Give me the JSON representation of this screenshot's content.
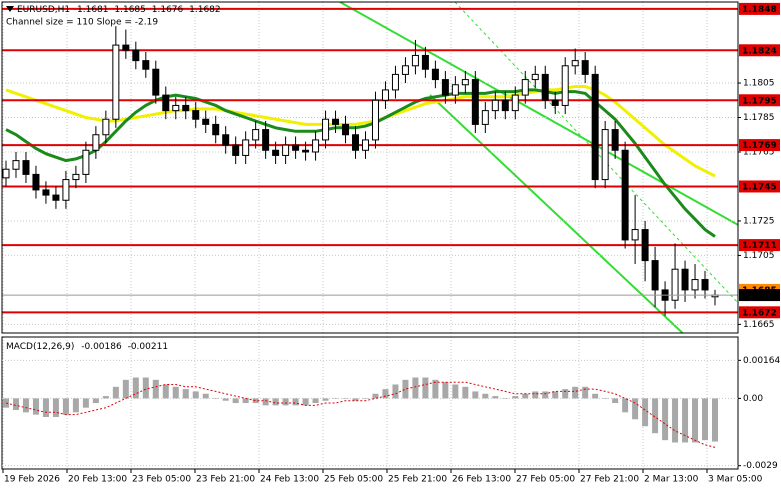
{
  "chart_data": {
    "type": "candlestick",
    "title": "EURUSD,H1",
    "header_values": [
      1.1681,
      1.1685,
      1.1676,
      1.1682
    ],
    "subtitle": "Channel size = 110 Slope = -2.19",
    "x_labels": [
      "19 Feb 2026",
      "20 Feb 13:00",
      "23 Feb 05:00",
      "23 Feb 21:00",
      "24 Feb 13:00",
      "25 Feb 05:00",
      "25 Feb 21:00",
      "26 Feb 13:00",
      "27 Feb 05:00",
      "27 Feb 21:00",
      "2 Mar 13:00",
      "3 Mar 05:00"
    ],
    "ylim": [
      1.166,
      1.1852
    ],
    "yticks": [
      1.1805,
      1.1785,
      1.1765,
      1.1725,
      1.1705,
      1.1665
    ],
    "grid": true,
    "levels": [
      1.1848,
      1.1824,
      1.1795,
      1.1769,
      1.1745,
      1.1711,
      1.1672
    ],
    "level_color": "#e00000",
    "ask": 1.1685,
    "ask_color": "#ff8c00",
    "price": 1.1682,
    "up_color": "#ffffff",
    "down_color": "#000000",
    "open": [
      1.175,
      1.1755,
      1.176,
      1.1752,
      1.1743,
      1.174,
      1.1737,
      1.1749,
      1.1752,
      1.1766,
      1.1775,
      1.1784,
      1.1827,
      1.1824,
      1.1818,
      1.1813,
      1.1798,
      1.1789,
      1.1792,
      1.1789,
      1.1784,
      1.1781,
      1.1775,
      1.1769,
      1.1763,
      1.1772,
      1.1778,
      1.1766,
      1.1763,
      1.1769,
      1.1766,
      1.1765,
      1.1772,
      1.1784,
      1.1781,
      1.1775,
      1.1766,
      1.1772,
      1.1795,
      1.1801,
      1.181,
      1.1815,
      1.1821,
      1.1813,
      1.1807,
      1.1798,
      1.1804,
      1.1807,
      1.1781,
      1.1789,
      1.1795,
      1.1789,
      1.1798,
      1.1807,
      1.181,
      1.1795,
      1.1792,
      1.1815,
      1.1818,
      1.181,
      1.1749,
      1.1778,
      1.1766,
      1.1714,
      1.172,
      1.1702,
      1.1685,
      1.1679,
      1.1697,
      1.1685,
      1.1691,
      1.1681
    ],
    "high": [
      1.176,
      1.1765,
      1.1765,
      1.1757,
      1.1748,
      1.1745,
      1.1754,
      1.1757,
      1.1771,
      1.178,
      1.1789,
      1.1838,
      1.1836,
      1.1829,
      1.1823,
      1.1818,
      1.1803,
      1.1797,
      1.1797,
      1.1794,
      1.1789,
      1.1786,
      1.178,
      1.1774,
      1.1777,
      1.1783,
      1.1783,
      1.1771,
      1.1774,
      1.1774,
      1.1771,
      1.1777,
      1.1789,
      1.1789,
      1.1786,
      1.178,
      1.1777,
      1.18,
      1.1806,
      1.1815,
      1.182,
      1.183,
      1.1826,
      1.1818,
      1.1812,
      1.1809,
      1.1812,
      1.1812,
      1.1794,
      1.18,
      1.18,
      1.1803,
      1.1812,
      1.1815,
      1.1815,
      1.18,
      1.182,
      1.1825,
      1.1823,
      1.1815,
      1.1783,
      1.1783,
      1.1771,
      1.174,
      1.1725,
      1.171,
      1.169,
      1.1712,
      1.1702,
      1.17,
      1.1696,
      1.1685
    ],
    "low": [
      1.1745,
      1.175,
      1.1747,
      1.1738,
      1.1735,
      1.1732,
      1.1732,
      1.1744,
      1.1747,
      1.1761,
      1.177,
      1.1779,
      1.1819,
      1.1813,
      1.1808,
      1.1793,
      1.1784,
      1.1784,
      1.1784,
      1.1779,
      1.1776,
      1.177,
      1.1764,
      1.1758,
      1.1758,
      1.1767,
      1.1761,
      1.1758,
      1.1758,
      1.1761,
      1.176,
      1.176,
      1.1767,
      1.1776,
      1.177,
      1.1761,
      1.1761,
      1.1767,
      1.179,
      1.1796,
      1.1805,
      1.181,
      1.1808,
      1.1802,
      1.1793,
      1.1793,
      1.1799,
      1.1776,
      1.1776,
      1.1784,
      1.1784,
      1.1784,
      1.1793,
      1.1802,
      1.179,
      1.1787,
      1.1787,
      1.181,
      1.1805,
      1.1744,
      1.1744,
      1.1761,
      1.1709,
      1.17,
      1.169,
      1.1675,
      1.167,
      1.1674,
      1.1678,
      1.168,
      1.168,
      1.1676
    ],
    "close": [
      1.1755,
      1.176,
      1.1752,
      1.1743,
      1.174,
      1.1737,
      1.1749,
      1.1752,
      1.1766,
      1.1775,
      1.1784,
      1.1827,
      1.1824,
      1.1818,
      1.1813,
      1.1798,
      1.1789,
      1.1792,
      1.1789,
      1.1784,
      1.1781,
      1.1775,
      1.1769,
      1.1763,
      1.1772,
      1.1778,
      1.1766,
      1.1763,
      1.1769,
      1.1766,
      1.1765,
      1.1772,
      1.1784,
      1.1781,
      1.1775,
      1.1766,
      1.1772,
      1.1795,
      1.1801,
      1.181,
      1.1815,
      1.1821,
      1.1813,
      1.1807,
      1.1798,
      1.1804,
      1.1807,
      1.1781,
      1.1789,
      1.1795,
      1.1789,
      1.1798,
      1.1807,
      1.181,
      1.1795,
      1.1792,
      1.1815,
      1.1818,
      1.181,
      1.1749,
      1.1778,
      1.1766,
      1.1714,
      1.172,
      1.1702,
      1.1685,
      1.1679,
      1.1697,
      1.1685,
      1.1691,
      1.1685,
      1.1682
    ],
    "series": [
      {
        "color": "#f0f000",
        "values": [
          1.1801,
          1.1799,
          1.1797,
          1.1795,
          1.1793,
          1.1791,
          1.1789,
          1.1787,
          1.1785,
          1.1784,
          1.1783,
          1.1783,
          1.1784,
          1.1785,
          1.1786,
          1.1787,
          1.1788,
          1.1789,
          1.1789,
          1.179,
          1.179,
          1.179,
          1.1789,
          1.1788,
          1.1787,
          1.1786,
          1.1785,
          1.1784,
          1.1783,
          1.1782,
          1.1781,
          1.1781,
          1.1781,
          1.1781,
          1.1781,
          1.1781,
          1.1782,
          1.1783,
          1.1785,
          1.1787,
          1.1789,
          1.1791,
          1.1793,
          1.1794,
          1.1795,
          1.1796,
          1.1797,
          1.1797,
          1.1797,
          1.1797,
          1.1797,
          1.1798,
          1.1799,
          1.18,
          1.1801,
          1.1801,
          1.1802,
          1.1803,
          1.1803,
          1.1801,
          1.1798,
          1.1794,
          1.1789,
          1.1784,
          1.1779,
          1.1774,
          1.1769,
          1.1765,
          1.1761,
          1.1757,
          1.1754,
          1.1751
        ]
      },
      {
        "color": "#1a8a1a",
        "values": [
          1.1778,
          1.1775,
          1.1771,
          1.1767,
          1.1764,
          1.1762,
          1.176,
          1.1761,
          1.1763,
          1.1766,
          1.1771,
          1.1777,
          1.1783,
          1.1788,
          1.1792,
          1.1795,
          1.1797,
          1.1798,
          1.1797,
          1.1796,
          1.1794,
          1.1792,
          1.1789,
          1.1787,
          1.1785,
          1.1783,
          1.1781,
          1.1779,
          1.1778,
          1.1777,
          1.1777,
          1.1777,
          1.1778,
          1.1779,
          1.1779,
          1.1779,
          1.178,
          1.1782,
          1.1785,
          1.1788,
          1.1791,
          1.1794,
          1.1796,
          1.1797,
          1.1798,
          1.1799,
          1.1799,
          1.1799,
          1.1799,
          1.18,
          1.18,
          1.18,
          1.1801,
          1.1801,
          1.18,
          1.1799,
          1.18,
          1.18,
          1.1799,
          1.1794,
          1.1789,
          1.1784,
          1.1777,
          1.177,
          1.1762,
          1.1754,
          1.1746,
          1.1739,
          1.1732,
          1.1726,
          1.172,
          1.1716
        ]
      }
    ],
    "macd": {
      "title": "MACD(12,26,9)",
      "macd_value": -0.00186,
      "signal_value": -0.00211,
      "ylim": [
        -0.003,
        0.002
      ],
      "yticks": [
        0.00164,
        {
          "value": 0,
          "label": "0.00"
        },
        -0.0029
      ],
      "histogram_color": "#a8a8a8",
      "signal_color": "#e00000",
      "histogram": [
        -0.0004,
        -0.0005,
        -0.0006,
        -0.0007,
        -0.0008,
        -0.0008,
        -0.0007,
        -0.0006,
        -0.0004,
        -0.0002,
        0.0001,
        0.0005,
        0.0008,
        0.0009,
        0.0009,
        0.0008,
        0.0006,
        0.0005,
        0.0004,
        0.0003,
        0.0002,
        0.0,
        -0.0001,
        -0.0002,
        -0.0002,
        -0.0002,
        -0.0003,
        -0.0003,
        -0.0003,
        -0.0003,
        -0.0003,
        -0.0002,
        -0.0001,
        0.0,
        0.0,
        -0.0001,
        0.0,
        0.0002,
        0.0004,
        0.0006,
        0.0008,
        0.0009,
        0.0009,
        0.0008,
        0.0007,
        0.0006,
        0.0005,
        0.0003,
        0.0002,
        0.0001,
        0.0,
        0.0001,
        0.0002,
        0.0003,
        0.0003,
        0.0003,
        0.0004,
        0.0005,
        0.0005,
        0.0002,
        0.0,
        -0.0002,
        -0.0006,
        -0.0009,
        -0.0012,
        -0.0015,
        -0.0018,
        -0.0019,
        -0.0019,
        -0.0019,
        -0.0018,
        -0.00186
      ],
      "signal": [
        -0.0002,
        -0.0003,
        -0.0004,
        -0.0005,
        -0.0006,
        -0.0006,
        -0.0007,
        -0.0007,
        -0.0006,
        -0.0005,
        -0.0004,
        -0.0002,
        0.0,
        0.0002,
        0.0004,
        0.0005,
        0.0006,
        0.0006,
        0.0005,
        0.0005,
        0.0004,
        0.0003,
        0.0002,
        0.0001,
        0.0,
        -0.0001,
        -0.0001,
        -0.0002,
        -0.0002,
        -0.0002,
        -0.0003,
        -0.0003,
        -0.0002,
        -0.0002,
        -0.0001,
        -0.0001,
        -0.0001,
        0.0,
        0.0001,
        0.0002,
        0.0004,
        0.0005,
        0.0006,
        0.0007,
        0.0007,
        0.0007,
        0.0007,
        0.0006,
        0.0005,
        0.0004,
        0.0003,
        0.0002,
        0.0002,
        0.0002,
        0.0002,
        0.0003,
        0.0003,
        0.0003,
        0.0004,
        0.0004,
        0.0003,
        0.0002,
        0.0,
        -0.0002,
        -0.0005,
        -0.0008,
        -0.0011,
        -0.0014,
        -0.0016,
        -0.0018,
        -0.002,
        -0.00211
      ]
    }
  }
}
